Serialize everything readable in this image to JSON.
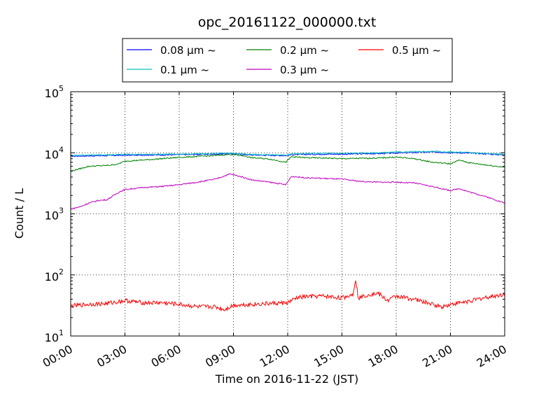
{
  "chart_data": {
    "type": "line",
    "title": "opc_20161122_000000.txt",
    "xlabel": "Time on 2016-11-22 (JST)",
    "ylabel": "Count / L",
    "yscale": "log",
    "xlim": [
      0,
      24
    ],
    "ylim": [
      10,
      100000
    ],
    "grid": true,
    "legend_position": "top",
    "xticks": [
      {
        "value": 0,
        "label": "00:00"
      },
      {
        "value": 3,
        "label": "03:00"
      },
      {
        "value": 6,
        "label": "06:00"
      },
      {
        "value": 9,
        "label": "09:00"
      },
      {
        "value": 12,
        "label": "12:00"
      },
      {
        "value": 15,
        "label": "15:00"
      },
      {
        "value": 18,
        "label": "18:00"
      },
      {
        "value": 21,
        "label": "21:00"
      },
      {
        "value": 24,
        "label": "24:00"
      }
    ],
    "yticks": [
      {
        "value": 10,
        "base": "10",
        "exp": "1"
      },
      {
        "value": 100,
        "base": "10",
        "exp": "2"
      },
      {
        "value": 1000,
        "base": "10",
        "exp": "3"
      },
      {
        "value": 10000,
        "base": "10",
        "exp": "4"
      },
      {
        "value": 100000,
        "base": "10",
        "exp": "5"
      }
    ],
    "series": [
      {
        "name": "0.08 μm ~",
        "color": "#0000ff",
        "x": [
          0,
          1,
          2,
          3,
          4,
          5,
          6,
          7,
          8,
          8.8,
          9.5,
          10,
          11,
          11.9,
          12.2,
          13,
          14,
          15,
          16,
          17,
          18,
          19,
          20,
          21,
          22,
          23,
          24
        ],
        "y": [
          8800,
          8900,
          9000,
          9100,
          9200,
          9200,
          9300,
          9400,
          9500,
          9700,
          9400,
          9200,
          9100,
          9000,
          9300,
          9400,
          9500,
          9500,
          9600,
          9700,
          9900,
          10100,
          10300,
          10100,
          9900,
          9600,
          9200
        ]
      },
      {
        "name": "0.1 μm ~",
        "color": "#00bfbf",
        "x": [
          0,
          1,
          2,
          3,
          4,
          5,
          6,
          7,
          8,
          8.8,
          9.5,
          10,
          11,
          11.9,
          12.2,
          13,
          14,
          15,
          16,
          17,
          18,
          19,
          20,
          21,
          22,
          23,
          24
        ],
        "y": [
          9100,
          9200,
          9300,
          9400,
          9400,
          9500,
          9500,
          9600,
          9700,
          9900,
          9600,
          9400,
          9300,
          9200,
          9600,
          9700,
          9800,
          9800,
          9900,
          10000,
          10200,
          10400,
          10500,
          10300,
          10100,
          9800,
          9400
        ]
      },
      {
        "name": "0.2 μm ~",
        "color": "#008000",
        "x": [
          0,
          1,
          2,
          2.6,
          3,
          4,
          5,
          6,
          7,
          8,
          8.8,
          9.5,
          10,
          11,
          11.9,
          12.2,
          13,
          14,
          15,
          16,
          17,
          18,
          19,
          20,
          21,
          21.5,
          22,
          23,
          24
        ],
        "y": [
          5000,
          6000,
          6200,
          6500,
          7300,
          7600,
          8000,
          8400,
          8700,
          9000,
          9400,
          9000,
          8300,
          7900,
          7000,
          8600,
          8300,
          8200,
          8000,
          8100,
          8200,
          8500,
          8000,
          7000,
          6600,
          7600,
          6900,
          6300,
          5800
        ]
      },
      {
        "name": "0.3 μm ~",
        "color": "#bf00bf",
        "x": [
          0,
          0.5,
          1,
          1.5,
          2,
          2.7,
          3,
          4,
          5,
          6,
          7,
          8,
          8.8,
          9.5,
          10,
          11,
          11.9,
          12.2,
          13,
          14,
          15,
          16,
          17,
          18,
          19,
          20,
          21,
          21.5,
          22,
          23,
          24
        ],
        "y": [
          1200,
          1300,
          1500,
          1650,
          1700,
          2300,
          2500,
          2700,
          2800,
          3000,
          3300,
          3700,
          4500,
          4000,
          3600,
          3300,
          3000,
          4100,
          3900,
          3800,
          3700,
          3400,
          3300,
          3300,
          3200,
          2800,
          2400,
          2600,
          2300,
          1900,
          1500
        ]
      },
      {
        "name": "0.5 μm ~",
        "color": "#ff0000",
        "x": [
          0,
          1,
          2,
          3,
          4,
          5,
          6,
          7,
          8,
          8.5,
          9,
          10,
          11,
          12,
          12.5,
          13,
          14,
          15,
          15.6,
          15.75,
          15.9,
          16.5,
          17,
          17.5,
          18,
          19,
          20,
          20.5,
          21,
          22,
          23,
          24
        ],
        "y": [
          31,
          33,
          34,
          38,
          35,
          35,
          33,
          30,
          30,
          27,
          32,
          33,
          34,
          35,
          42,
          44,
          45,
          42,
          48,
          88,
          42,
          48,
          50,
          38,
          45,
          40,
          33,
          30,
          33,
          37,
          43,
          48
        ]
      }
    ]
  }
}
